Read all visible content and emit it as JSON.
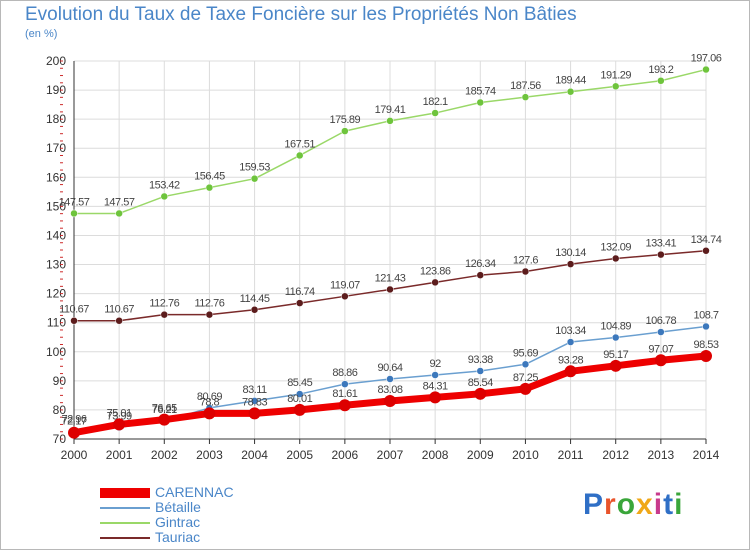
{
  "title": "Evolution du Taux de Taxe Foncière sur les Propriétés Non Bâties",
  "unit_label": "(en %)",
  "logo": {
    "text": "Proxiti",
    "letter_colors": [
      "#2f6fc6",
      "#e9542b",
      "#3aa63a",
      "#f0a818",
      "#c83a8c",
      "#2f6fc6",
      "#3aa63a"
    ]
  },
  "colors": {
    "grid": "#dcdcdc",
    "axis": "#333333",
    "axis_ticks": "#cc2b2b",
    "background": "#ffffff"
  },
  "chart_data": {
    "type": "line",
    "title": "Evolution du Taux de Taxe Foncière sur les Propriétés Non Bâties",
    "ylabel": "(en %)",
    "xlabel": "",
    "ylim": [
      70,
      200
    ],
    "y_ticks": [
      70,
      80,
      90,
      100,
      110,
      120,
      130,
      140,
      150,
      160,
      170,
      180,
      190,
      200
    ],
    "grid": true,
    "legend_position": "bottom-left",
    "categories": [
      "2000",
      "2001",
      "2002",
      "2003",
      "2004",
      "2005",
      "2006",
      "2007",
      "2008",
      "2009",
      "2010",
      "2011",
      "2012",
      "2013",
      "2014"
    ],
    "series": [
      {
        "name": "Gintrac",
        "color": "#9ad868",
        "marker": "#6ec43c",
        "width": 1.5,
        "values": [
          147.57,
          147.57,
          153.42,
          156.45,
          159.53,
          167.51,
          175.89,
          179.41,
          182.1,
          185.74,
          187.56,
          189.44,
          191.29,
          193.2,
          197.06
        ],
        "labels": [
          "147.57",
          "147.57",
          "153.42",
          "156.45",
          "159.53",
          "167.51",
          "175.89",
          "179.41",
          "182.1",
          "185.74",
          "187.56",
          "189.44",
          "191.29",
          "193.2",
          "197.06"
        ]
      },
      {
        "name": "Tauriac",
        "color": "#7a2a2a",
        "marker": "#5c1c1c",
        "width": 1.5,
        "values": [
          110.67,
          110.67,
          112.76,
          112.76,
          114.45,
          116.74,
          119.07,
          121.43,
          123.86,
          126.34,
          127.6,
          130.14,
          132.09,
          133.41,
          134.74
        ],
        "labels": [
          "110.67",
          "110.67",
          "112.76",
          "112.76",
          "114.45",
          "116.74",
          "119.07",
          "121.43",
          "123.86",
          "126.34",
          "127.6",
          "130.14",
          "132.09",
          "133.41",
          "134.74"
        ]
      },
      {
        "name": "Bétaille",
        "color": "#6a9fd0",
        "marker": "#3c78bc",
        "width": 1.5,
        "values": [
          72.96,
          73.99,
          76.21,
          80.69,
          83.11,
          85.45,
          88.86,
          90.64,
          92,
          93.38,
          95.69,
          103.34,
          104.89,
          106.78,
          108.7
        ],
        "labels": [
          "72.96",
          "73.99",
          "76.21",
          "80.69",
          "83.11",
          "85.45",
          "88.86",
          "90.64",
          "92",
          "93.38",
          "95.69",
          "103.34",
          "104.89",
          "106.78",
          "108.7"
        ]
      },
      {
        "name": "CARENNAC",
        "color": "#ee0000",
        "marker": "#dd0000",
        "width": 7,
        "values": [
          72.17,
          75.01,
          76.65,
          78.8,
          78.83,
          80.01,
          81.61,
          83.08,
          84.31,
          85.54,
          87.25,
          93.28,
          95.17,
          97.07,
          98.53
        ],
        "labels": [
          "72.17",
          "75.01",
          "76.65",
          "78.8",
          "78.83",
          "80.01",
          "81.61",
          "83.08",
          "84.31",
          "85.54",
          "87.25",
          "93.28",
          "95.17",
          "97.07",
          "98.53"
        ]
      }
    ],
    "legend_order": [
      "CARENNAC",
      "Bétaille",
      "Gintrac",
      "Tauriac"
    ]
  }
}
